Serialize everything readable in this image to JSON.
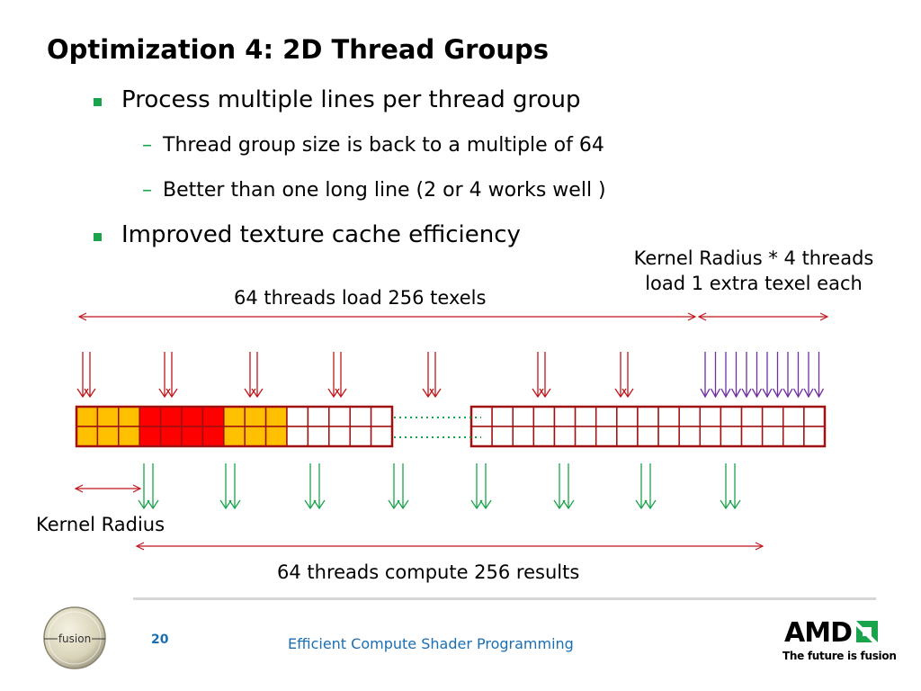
{
  "slide": {
    "title": "Optimization 4: 2D Thread Groups",
    "bullets": [
      {
        "text": "Process multiple lines per thread group"
      },
      {
        "text": "Improved texture cache efficiency"
      }
    ],
    "sub_bullets": [
      {
        "dash": "–",
        "text": "Thread group size is back to a multiple of 64"
      },
      {
        "dash": "–",
        "text": "Better than one long line (2 or 4 works well )"
      }
    ]
  },
  "diagram": {
    "label_load": "64 threads load 256 texels",
    "label_extra_line1": "Kernel Radius * 4 threads",
    "label_extra_line2": "load 1 extra texel each",
    "label_kernel_radius": "Kernel Radius",
    "label_compute": "64 threads compute 256 results",
    "colors": {
      "load_arrow": "#c0161c",
      "extra_arrow": "#7030a0",
      "compute_arrow": "#19a34a",
      "cell_border": "#a01010",
      "cell_orange": "#ffc000",
      "cell_red": "#ff0000",
      "dots": "#19a34a",
      "range_arrow": "#c0161c"
    },
    "cell_pattern": [
      "orange",
      "orange",
      "orange",
      "red",
      "red",
      "red",
      "red",
      "orange",
      "orange",
      "orange",
      "white",
      "white",
      "white",
      "white",
      "white"
    ]
  },
  "footer": {
    "page_number": "20",
    "title": "Efficient Compute Shader Programming",
    "logo_left_text": "fusion",
    "brand": "AMD",
    "tagline": "The future is fusion"
  }
}
